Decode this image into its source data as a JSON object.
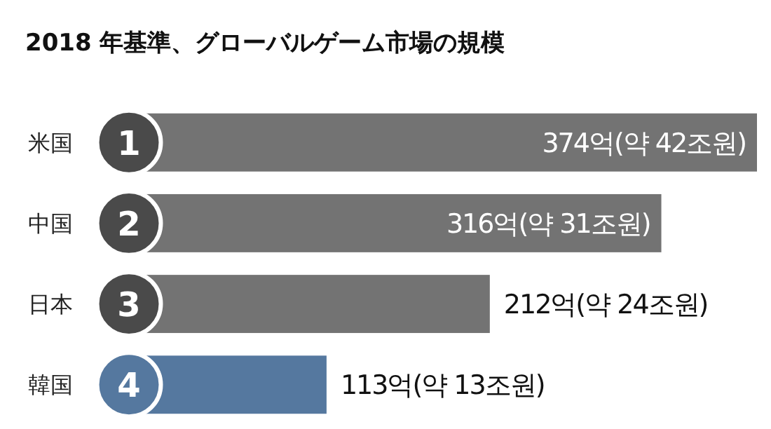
{
  "chart_data": {
    "type": "bar",
    "orientation": "horizontal",
    "title": "2018 年基準、グローバルゲーム市場の規模",
    "categories": [
      "米国",
      "中国",
      "日本",
      "韓国"
    ],
    "values": [
      374,
      316,
      212,
      113
    ],
    "colors": [
      "#737373",
      "#737373",
      "#737373",
      "#55789f"
    ],
    "value_labels": [
      "374억(약 42조원)",
      "316억(약 31조원)",
      "212억(약 24조원)",
      "113억(약 13조원)"
    ],
    "annotations": [
      "1",
      "2",
      "3",
      "4"
    ],
    "xlim": [
      0,
      374
    ],
    "tick_labels": "y"
  }
}
